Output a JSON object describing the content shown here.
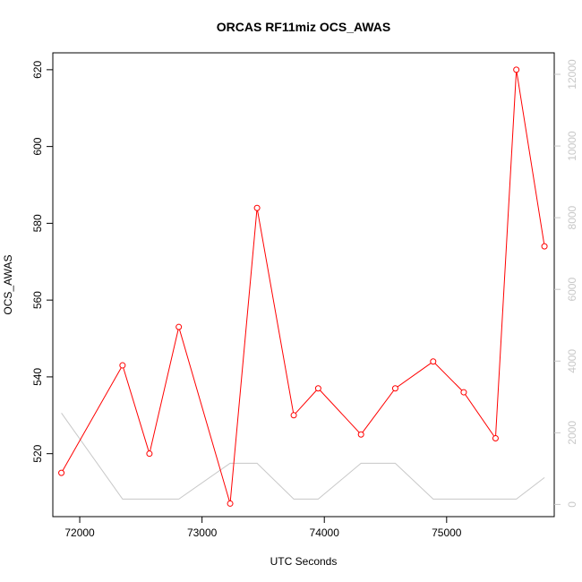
{
  "chart_data": {
    "type": "line",
    "title": "ORCAS RF11miz OCS_AWAS",
    "xlabel": "UTC Seconds",
    "ylabel": "OCS_AWAS",
    "xlim": [
      71780,
      75880
    ],
    "ylim": [
      503.6,
      624.4
    ],
    "y2lim": [
      -340,
      12600
    ],
    "x_ticks": [
      72000,
      73000,
      74000,
      75000
    ],
    "y_ticks": [
      520,
      540,
      560,
      580,
      600,
      620
    ],
    "y2_ticks": [
      0,
      2000,
      4000,
      6000,
      8000,
      10000,
      12000
    ],
    "grid": false,
    "legend": "none",
    "series": [
      {
        "axis": "left",
        "color": "#ff0000",
        "marker": "open-circle",
        "x": [
          71850,
          72350,
          72570,
          72810,
          73230,
          73450,
          73750,
          73950,
          74300,
          74580,
          74890,
          75140,
          75400,
          75570,
          75800
        ],
        "y": [
          515,
          543,
          520,
          553,
          507,
          584,
          530,
          537,
          525,
          537,
          544,
          536,
          524,
          620,
          574
        ]
      },
      {
        "axis": "right",
        "color": "#c8c8c8",
        "marker": "none",
        "x": [
          71850,
          72350,
          72570,
          72810,
          73230,
          73450,
          73750,
          73950,
          74300,
          74580,
          74890,
          75140,
          75400,
          75570,
          75800
        ],
        "y": [
          2550,
          150,
          150,
          150,
          1150,
          1150,
          150,
          150,
          1150,
          1150,
          150,
          150,
          150,
          150,
          750
        ]
      }
    ]
  }
}
